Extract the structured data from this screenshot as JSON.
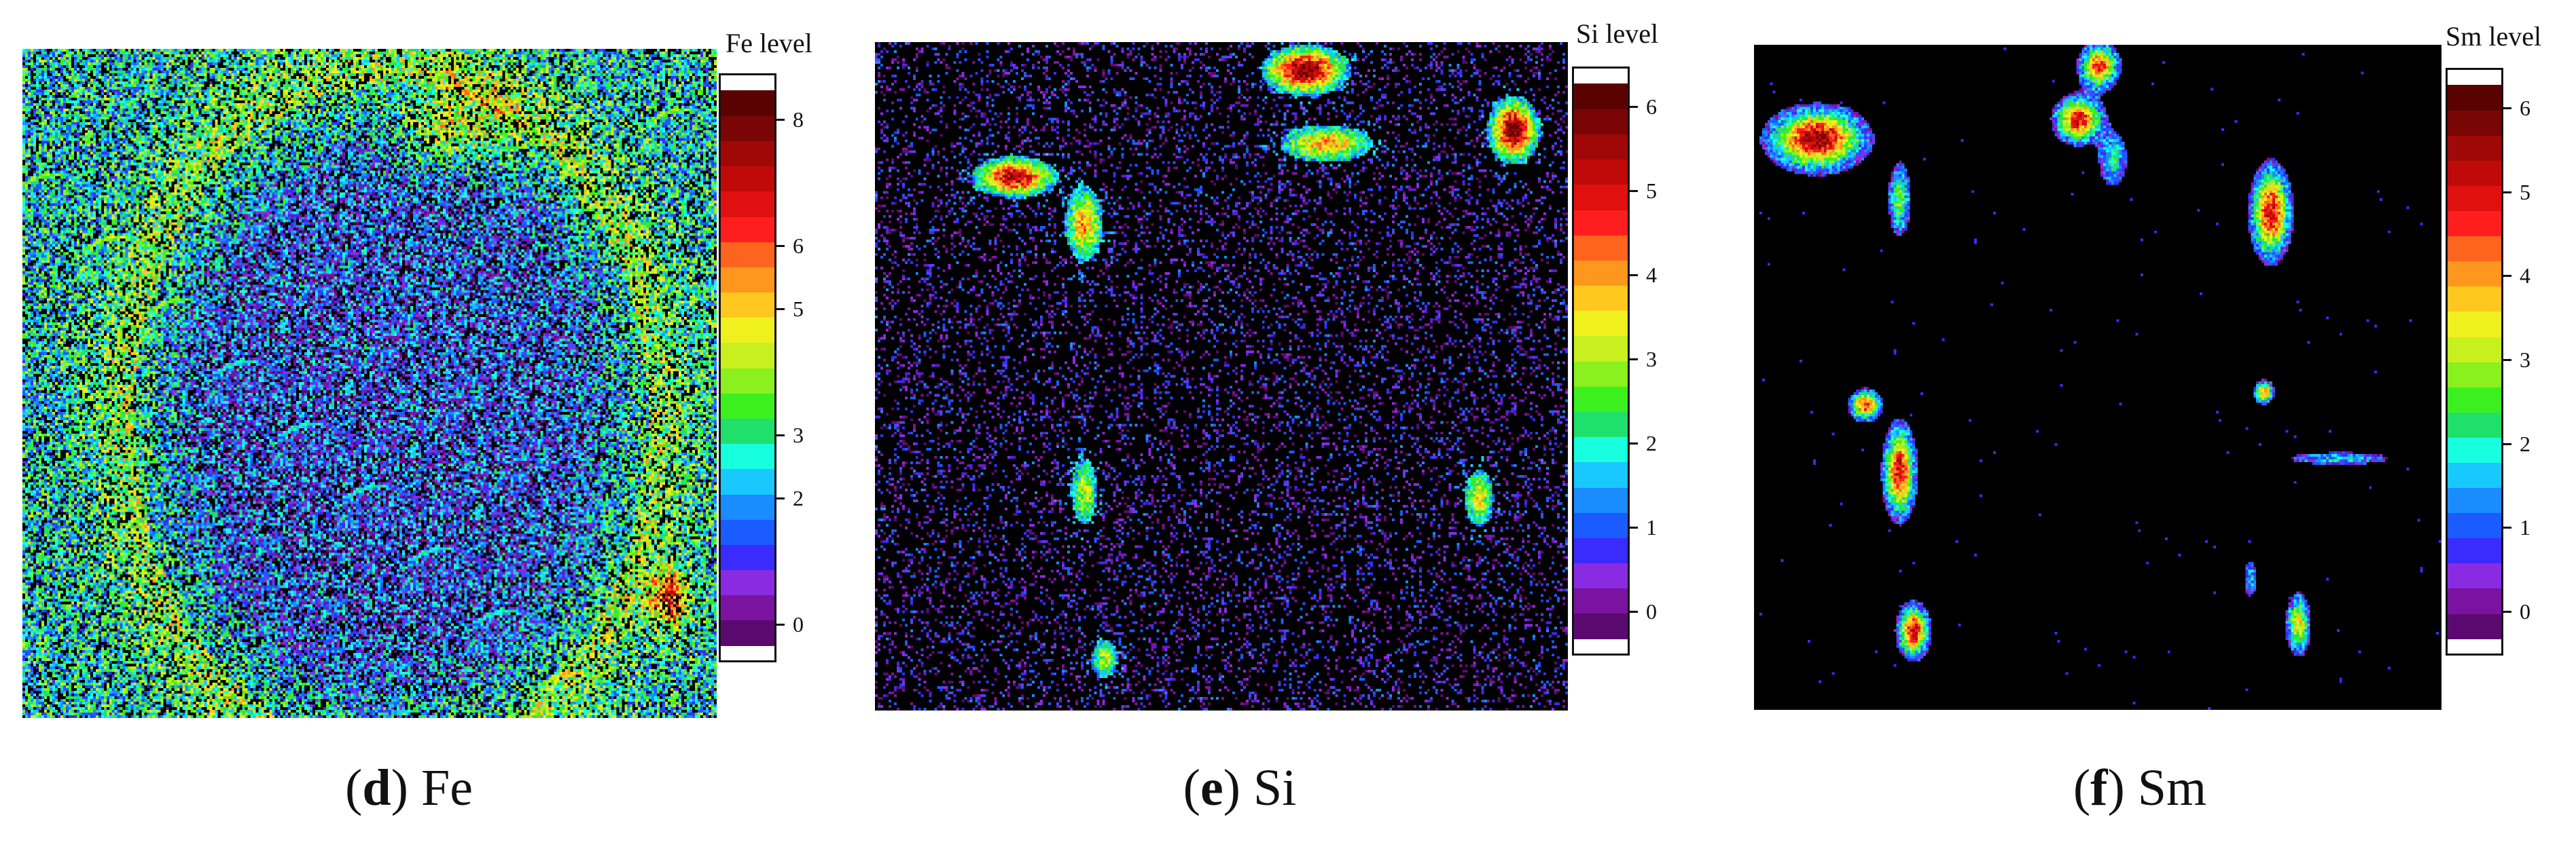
{
  "panels": [
    {
      "id": "fe",
      "colorbar_title": "Fe level",
      "ticks": [
        "0",
        "2",
        "3",
        "5",
        "6",
        "8"
      ],
      "tick_values": [
        0,
        2,
        3,
        5,
        6,
        8
      ],
      "vmax": 8.5,
      "caption_letter": "d",
      "caption_element": "Fe",
      "texture": "diffuse-ring"
    },
    {
      "id": "si",
      "colorbar_title": "Si level",
      "ticks": [
        "0",
        "1",
        "2",
        "3",
        "4",
        "5",
        "6"
      ],
      "tick_values": [
        0,
        1,
        2,
        3,
        4,
        5,
        6
      ],
      "vmax": 6.3,
      "caption_letter": "e",
      "caption_element": "Si",
      "texture": "sparse-clusters"
    },
    {
      "id": "sm",
      "colorbar_title": "Sm level",
      "ticks": [
        "0",
        "1",
        "2",
        "3",
        "4",
        "5",
        "6"
      ],
      "tick_values": [
        0,
        1,
        2,
        3,
        4,
        5,
        6
      ],
      "vmax": 6.3,
      "caption_letter": "f",
      "caption_element": "Sm",
      "texture": "isolated-blobs"
    }
  ],
  "palette": [
    "#5a0a6e",
    "#7a14a0",
    "#8a2be2",
    "#3a2bff",
    "#1a5cff",
    "#1a8cff",
    "#18c8ff",
    "#18ffe0",
    "#1ee06a",
    "#3cf020",
    "#8af01e",
    "#c8f01e",
    "#f0f01e",
    "#ffc81e",
    "#ff961e",
    "#ff641e",
    "#ff1e1e",
    "#e01010",
    "#c00a0a",
    "#a00808",
    "#7a0505",
    "#5a0202"
  ]
}
